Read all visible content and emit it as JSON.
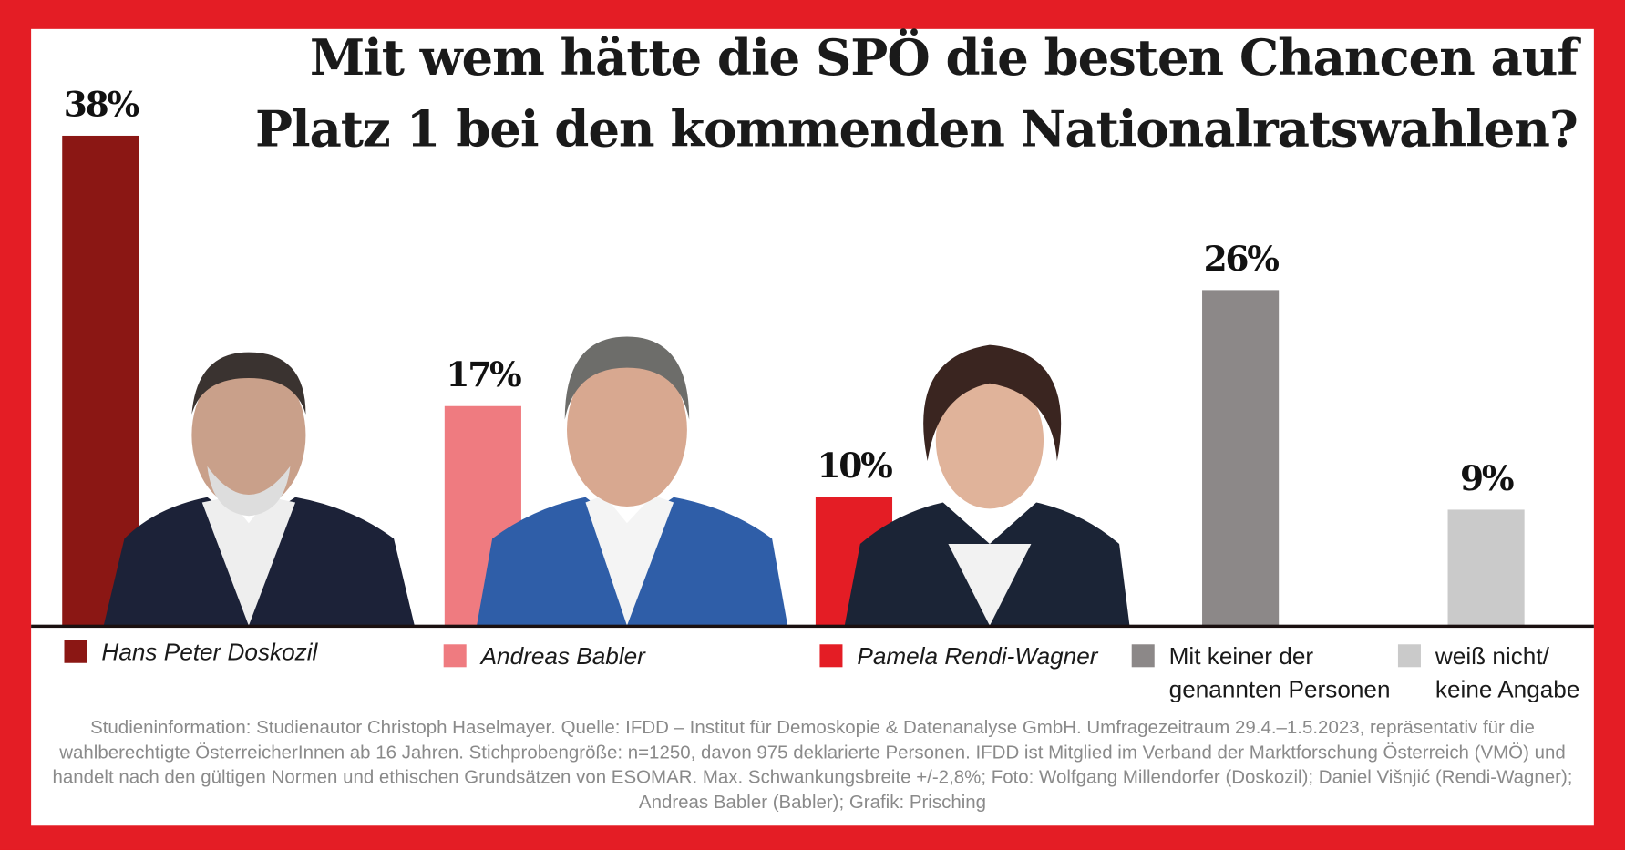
{
  "chart_data": {
    "type": "bar",
    "title": "Mit wem hätte die SPÖ die besten Chancen auf Platz 1 bei den kommenden Nationalratswahlen?",
    "title_lines": [
      "Mit wem hätte die SPÖ die besten Chancen auf",
      "Platz 1 bei den kommenden Nationalratswahlen?"
    ],
    "categories": [
      "Hans Peter Doskozil",
      "Andreas Babler",
      "Pamela Rendi-Wagner",
      "Mit keiner der genannten Personen",
      "weiß nicht/ keine Angabe"
    ],
    "legend_lines": [
      [
        "Hans Peter Doskozil"
      ],
      [
        "Andreas Babler"
      ],
      [
        "Pamela Rendi-Wagner"
      ],
      [
        "Mit keiner der",
        "genannten Personen"
      ],
      [
        "weiß nicht/",
        "keine Angabe"
      ]
    ],
    "values": [
      38,
      17,
      10,
      26,
      9
    ],
    "value_labels": [
      "38%",
      "17%",
      "10%",
      "26%",
      "9%"
    ],
    "colors": [
      "#8b1714",
      "#ef7b80",
      "#e41d25",
      "#8c8888",
      "#cacaca"
    ],
    "unit": "%",
    "ylim": [
      0,
      40
    ],
    "grid": false,
    "legend_placement": "bottom"
  },
  "footnote": "Studieninformation: Studienautor Christoph Haselmayer. Quelle: IFDD – Institut für Demoskopie & Datenanalyse GmbH. Umfragezeitraum 29.4.–1.5.2023, repräsentativ für die wahlberechtigte ÖsterreicherInnen ab 16 Jahren. Stichprobengröße: n=1250, davon 975 deklarierte Personen. IFDD ist Mitglied im Verband der Marktforschung Österreich (VMÖ) und handelt nach den gültigen Normen und ethischen Grundsätzen von ESOMAR. Max. Schwankungsbreite +/-2,8%; Foto: Wolfgang Millendorfer (Doskozil); Daniel Višnjić (Rendi-Wagner); Andreas Babler (Babler); Grafik: Prisching"
}
